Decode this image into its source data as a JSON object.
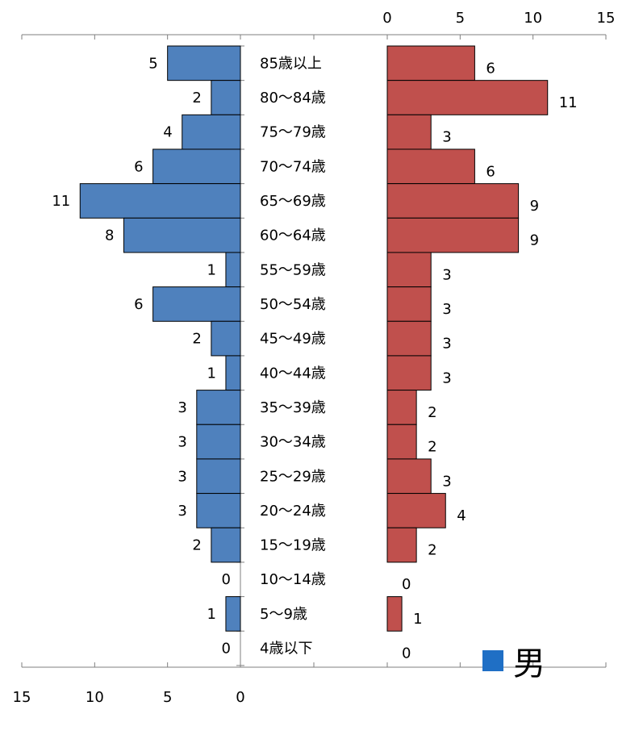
{
  "chart_data": {
    "type": "bar",
    "orientation": "horizontal",
    "layout": "population-pyramid",
    "categories": [
      "85歳以上",
      "80〜84歳",
      "75〜79歳",
      "70〜74歳",
      "65〜69歳",
      "60〜64歳",
      "55〜59歳",
      "50〜54歳",
      "45〜49歳",
      "40〜44歳",
      "35〜39歳",
      "30〜34歳",
      "25〜29歳",
      "20〜24歳",
      "15〜19歳",
      "10〜14歳",
      "5〜9歳",
      "4歳以下"
    ],
    "series": [
      {
        "name": "男",
        "side": "left",
        "color": "#4f81bd",
        "values": [
          5,
          2,
          4,
          6,
          11,
          8,
          1,
          6,
          2,
          1,
          3,
          3,
          3,
          3,
          2,
          0,
          1,
          0
        ]
      },
      {
        "side": "right",
        "color": "#c0504d",
        "values": [
          6,
          11,
          3,
          6,
          9,
          9,
          3,
          3,
          3,
          3,
          2,
          2,
          3,
          4,
          2,
          0,
          1,
          0
        ]
      }
    ],
    "xlim": [
      0,
      15
    ],
    "ticks": [
      0,
      5,
      10,
      15
    ],
    "left_tick_labels": [
      "15",
      "10",
      "5",
      "0"
    ],
    "right_tick_labels": [
      "0",
      "5",
      "10",
      "15"
    ],
    "legend": {
      "label": "男",
      "color": "#1f6fc5",
      "position": "bottom-right"
    },
    "grid": false
  }
}
